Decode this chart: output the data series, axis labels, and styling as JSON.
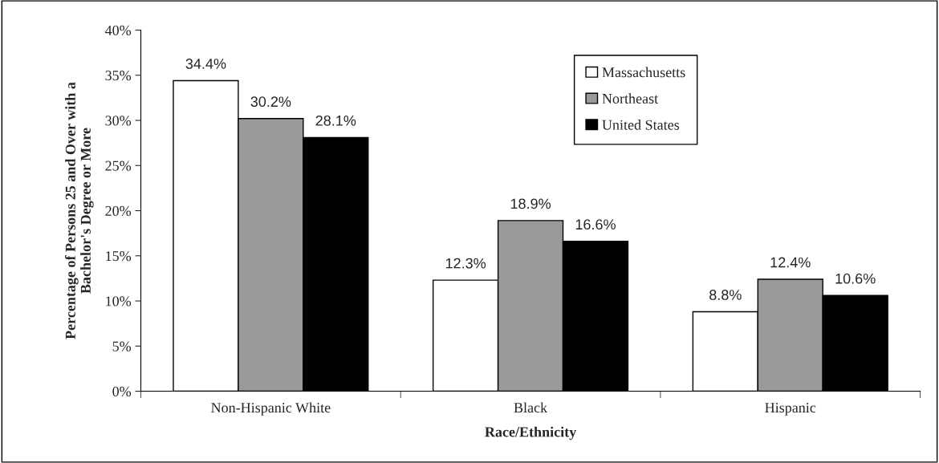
{
  "chart_data": {
    "type": "bar",
    "xlabel": "Race/Ethnicity",
    "ylabel": "Percentage of Persons 25 and Over with a\nBachelor's Degree or More",
    "categories": [
      "Non-Hispanic White",
      "Black",
      "Hispanic"
    ],
    "series": [
      {
        "name": "Massachusetts",
        "color": "#ffffff",
        "values": [
          34.4,
          12.3,
          8.8
        ],
        "value_labels": [
          "34.4%",
          "12.3%",
          "8.8%"
        ]
      },
      {
        "name": "Northeast",
        "color": "#9a9a9a",
        "values": [
          30.2,
          18.9,
          12.4
        ],
        "value_labels": [
          "30.2%",
          "18.9%",
          "12.4%"
        ]
      },
      {
        "name": "United States",
        "color": "#000000",
        "values": [
          28.1,
          16.6,
          10.6
        ],
        "value_labels": [
          "28.1%",
          "16.6%",
          "10.6%"
        ]
      }
    ],
    "ylim": [
      0,
      40
    ],
    "yticks": [
      {
        "value": 0,
        "label": "0%"
      },
      {
        "value": 5,
        "label": "5%"
      },
      {
        "value": 10,
        "label": "10%"
      },
      {
        "value": 15,
        "label": "15%"
      },
      {
        "value": 20,
        "label": "20%"
      },
      {
        "value": 25,
        "label": "25%"
      },
      {
        "value": 30,
        "label": "30%"
      },
      {
        "value": 35,
        "label": "35%"
      },
      {
        "value": 40,
        "label": "40%"
      }
    ],
    "legend": "top",
    "grid": false
  }
}
